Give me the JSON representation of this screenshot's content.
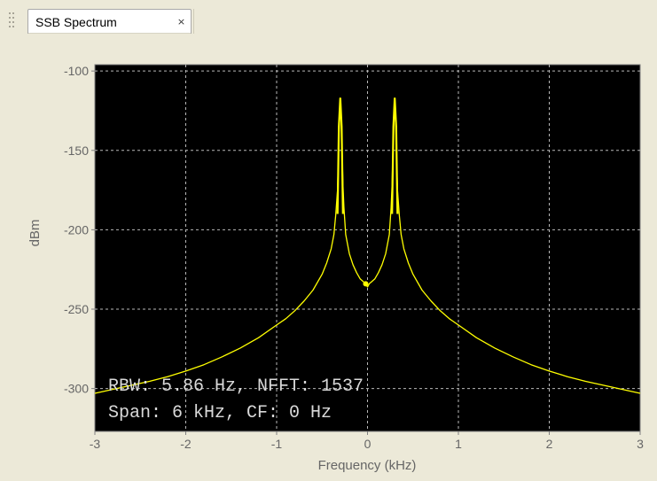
{
  "tab": {
    "title": "SSB Spectrum",
    "close_glyph": "×",
    "close_icon": "close-icon"
  },
  "colors": {
    "plot_background": "#000000",
    "trace": "#ffff00",
    "grid": "#b8b8b8",
    "window": "#ece9d8"
  },
  "chart_data": {
    "type": "line",
    "title": "",
    "xlabel": "Frequency (kHz)",
    "ylabel": "dBm",
    "xlim": [
      -3,
      3
    ],
    "ylim": [
      -327,
      -96
    ],
    "grid": true,
    "xticks": [
      -3,
      -2,
      -1,
      0,
      1,
      2,
      3
    ],
    "yticks": [
      -100,
      -150,
      -200,
      -250,
      -300
    ],
    "annotations": [
      "RBW: 5.86 Hz, NFFT: 1537",
      "Span: 6 kHz, CF: 0 Hz"
    ],
    "series": [
      {
        "x": [
          -3.0,
          -2.8,
          -2.6,
          -2.4,
          -2.2,
          -2.0,
          -1.8,
          -1.6,
          -1.4,
          -1.2,
          -1.0,
          -0.9,
          -0.8,
          -0.7,
          -0.6,
          -0.5,
          -0.45,
          -0.4,
          -0.37,
          -0.35,
          -0.33,
          -0.32,
          -0.31,
          -0.3,
          -0.29,
          -0.28,
          -0.27,
          -0.26,
          -0.24,
          -0.2,
          -0.16,
          -0.12,
          -0.08,
          -0.04,
          -0.02,
          0.0,
          0.02,
          0.04,
          0.08,
          0.12,
          0.16,
          0.2,
          0.24,
          0.26,
          0.27,
          0.28,
          0.29,
          0.3,
          0.31,
          0.32,
          0.33,
          0.35,
          0.37,
          0.4,
          0.45,
          0.5,
          0.6,
          0.7,
          0.8,
          0.9,
          1.0,
          1.2,
          1.4,
          1.6,
          1.8,
          2.0,
          2.2,
          2.4,
          2.6,
          2.8,
          3.0
        ],
        "y": [
          -303,
          -300.5,
          -298,
          -295.5,
          -292.5,
          -289,
          -285,
          -280,
          -274.5,
          -268,
          -260,
          -256,
          -251,
          -245,
          -238,
          -228,
          -221,
          -212,
          -203,
          -191,
          -175,
          -156,
          -130,
          -117,
          -130,
          -150,
          -172,
          -186,
          -203,
          -215,
          -222,
          -227,
          -231,
          -233,
          -234,
          -236,
          -234,
          -233,
          -231,
          -227,
          -222,
          -215,
          -203,
          -186,
          -172,
          -150,
          -130,
          -117,
          -130,
          -156,
          -175,
          -191,
          -203,
          -212,
          -221,
          -228,
          -238,
          -245,
          -251,
          -256,
          -260,
          -268,
          -274.5,
          -280,
          -285,
          -289,
          -292.5,
          -295.5,
          -298,
          -300.5,
          -303
        ]
      }
    ]
  }
}
